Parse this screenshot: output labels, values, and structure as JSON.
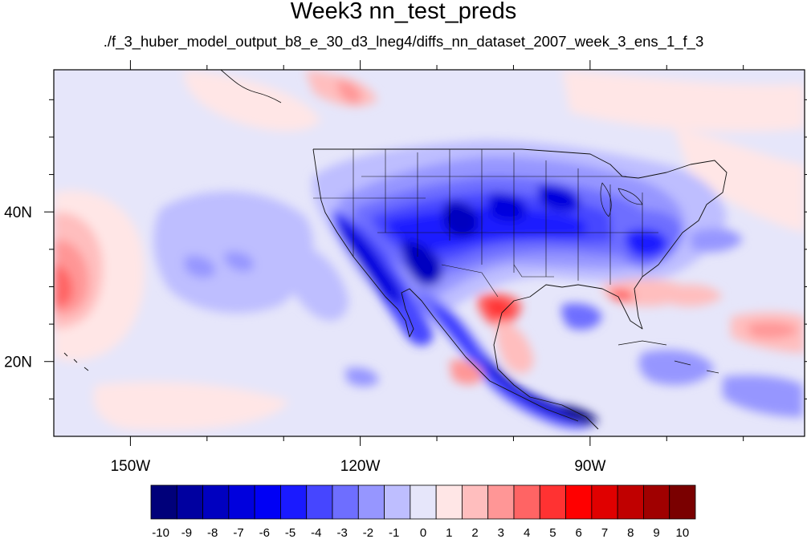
{
  "title": "Week3 nn_test_preds",
  "subtitle": "./f_3_huber_model_output_b8_e_30_d3_lneg4/diffs_nn_dataset_2007_week_3_ens_1_f_3",
  "map": {
    "lon_range": [
      -160,
      -62
    ],
    "lat_range": [
      10,
      59
    ],
    "lon_ticks": [
      {
        "value": -150,
        "label": "150W"
      },
      {
        "value": -120,
        "label": "120W"
      },
      {
        "value": -90,
        "label": "90W"
      }
    ],
    "lat_ticks": [
      {
        "value": 40,
        "label": "40N"
      },
      {
        "value": 20,
        "label": "20N"
      }
    ]
  },
  "colorbar": {
    "labels": [
      "-10",
      "-9",
      "-8",
      "-7",
      "-6",
      "-5",
      "-4",
      "-3",
      "-2",
      "-1",
      "0",
      "1",
      "2",
      "3",
      "4",
      "5",
      "6",
      "7",
      "8",
      "9",
      "10"
    ],
    "colors": [
      "#00007a",
      "#0000a0",
      "#0000c0",
      "#0000dd",
      "#0000f5",
      "#1a1aff",
      "#4646ff",
      "#6e6eff",
      "#9696ff",
      "#bebeff",
      "#e6e6fa",
      "#ffe6e6",
      "#ffbebe",
      "#ff9696",
      "#ff6464",
      "#ff3232",
      "#ff0000",
      "#e00000",
      "#c00000",
      "#a00000",
      "#7a0000"
    ]
  },
  "chart_data": {
    "type": "heatmap",
    "title": "Week3 nn_test_preds",
    "subtitle": "./f_3_huber_model_output_b8_e_30_d3_lneg4/diffs_nn_dataset_2007_week_3_ens_1_f_3",
    "xlabel": "",
    "ylabel": "",
    "x_ticks": [
      "150W",
      "120W",
      "90W"
    ],
    "y_ticks": [
      "40N",
      "20N"
    ],
    "color_levels": [
      -10,
      -9,
      -8,
      -7,
      -6,
      -5,
      -4,
      -3,
      -2,
      -1,
      0,
      1,
      2,
      3,
      4,
      5,
      6,
      7,
      8,
      9,
      10
    ],
    "colorscale": "blue-white-red",
    "background_value": -1,
    "regions": [
      {
        "lon": -158,
        "lat": 30,
        "value": 3
      },
      {
        "lon": -156,
        "lat": 33,
        "value": 2
      },
      {
        "lon": -154,
        "lat": 38,
        "value": 1
      },
      {
        "lon": -130,
        "lat": 33,
        "value": -2
      },
      {
        "lon": -120,
        "lat": 37,
        "value": -4
      },
      {
        "lon": -112,
        "lat": 34,
        "value": -7
      },
      {
        "lon": -108,
        "lat": 27,
        "value": -6
      },
      {
        "lon": -100,
        "lat": 38,
        "value": -7
      },
      {
        "lon": -92,
        "lat": 42,
        "value": -6
      },
      {
        "lon": -80,
        "lat": 37,
        "value": -5
      },
      {
        "lon": -96,
        "lat": 17,
        "value": -7
      },
      {
        "lon": -88,
        "lat": 14,
        "value": -8
      },
      {
        "lon": -99,
        "lat": 27,
        "value": 4
      },
      {
        "lon": -82,
        "lat": 28,
        "value": 3
      },
      {
        "lon": -72,
        "lat": 29,
        "value": 2
      },
      {
        "lon": -66,
        "lat": 24,
        "value": 3
      },
      {
        "lon": -120,
        "lat": 57,
        "value": 2
      },
      {
        "lon": -95,
        "lat": 26,
        "value": 2
      },
      {
        "lon": -85,
        "lat": 24,
        "value": -3
      },
      {
        "lon": -73,
        "lat": 36,
        "value": -3
      }
    ]
  }
}
